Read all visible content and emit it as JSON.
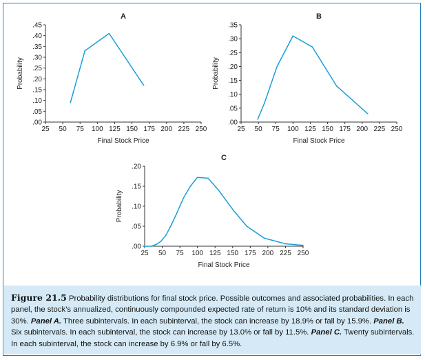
{
  "chart_data": [
    {
      "type": "line",
      "title": "A",
      "xlabel": "Final Stock Price",
      "ylabel": "Probability",
      "xlim": [
        25,
        250
      ],
      "ylim": [
        0,
        0.45
      ],
      "x_ticks": [
        25,
        50,
        75,
        100,
        125,
        150,
        175,
        200,
        225,
        250
      ],
      "y_ticks": [
        0,
        0.05,
        0.1,
        0.15,
        0.2,
        0.25,
        0.3,
        0.35,
        0.4,
        0.45
      ],
      "y_tick_labels": [
        ".00",
        ".05",
        ".10",
        ".15",
        ".20",
        ".25",
        ".30",
        ".35",
        ".40",
        ".45"
      ],
      "x": [
        61,
        82,
        117,
        167
      ],
      "values": [
        0.09,
        0.33,
        0.41,
        0.17
      ],
      "color": "#1a9fd8"
    },
    {
      "type": "line",
      "title": "B",
      "xlabel": "Final Stock Price",
      "ylabel": "Probability",
      "xlim": [
        25,
        250
      ],
      "ylim": [
        0,
        0.35
      ],
      "x_ticks": [
        25,
        50,
        75,
        100,
        125,
        150,
        175,
        200,
        225,
        250
      ],
      "y_ticks": [
        0,
        0.05,
        0.1,
        0.15,
        0.2,
        0.25,
        0.3,
        0.35
      ],
      "y_tick_labels": [
        ".00",
        ".05",
        ".10",
        ".15",
        ".20",
        ".25",
        ".30",
        ".35"
      ],
      "x": [
        49,
        59,
        77,
        100,
        128,
        163,
        208
      ],
      "values": [
        0.01,
        0.07,
        0.2,
        0.31,
        0.27,
        0.13,
        0.03
      ],
      "color": "#1a9fd8"
    },
    {
      "type": "line",
      "title": "C",
      "xlabel": "Final Stock Price",
      "ylabel": "Probability",
      "xlim": [
        25,
        250
      ],
      "ylim": [
        0,
        0.2
      ],
      "x_ticks": [
        25,
        50,
        75,
        100,
        125,
        150,
        175,
        200,
        225,
        250
      ],
      "y_ticks": [
        0,
        0.05,
        0.1,
        0.15,
        0.2
      ],
      "y_tick_labels": [
        ".00",
        ".05",
        ".10",
        ".15",
        ".20"
      ],
      "x": [
        25,
        35,
        42,
        48,
        55,
        62,
        70,
        80,
        90,
        100,
        115,
        130,
        150,
        170,
        195,
        225,
        250
      ],
      "values": [
        0.0,
        0.0,
        0.005,
        0.012,
        0.027,
        0.05,
        0.08,
        0.12,
        0.15,
        0.172,
        0.17,
        0.14,
        0.092,
        0.05,
        0.02,
        0.006,
        0.002
      ],
      "color": "#1a9fd8"
    }
  ],
  "caption": {
    "figure_label": "Figure 21.5",
    "intro": "Probability distributions for final stock price. Possible outcomes and associated probabilities. In each panel, the stock’s annualized, continuously compounded expected rate of return is 10% and its standard deviation is 30%.",
    "panel_a_label": "Panel A.",
    "panel_a_text": "Three subintervals. In each subinterval, the stock can increase by 18.9% or fall by 15.9%.",
    "panel_b_label": "Panel B.",
    "panel_b_text": "Six subintervals. In each subinterval, the stock can increase by 13.0% or fall by 11.5%.",
    "panel_c_label": "Panel C.",
    "panel_c_text": "Twenty subintervals. In each subinterval, the stock can increase by 6.9% or fall by 6.5%."
  }
}
